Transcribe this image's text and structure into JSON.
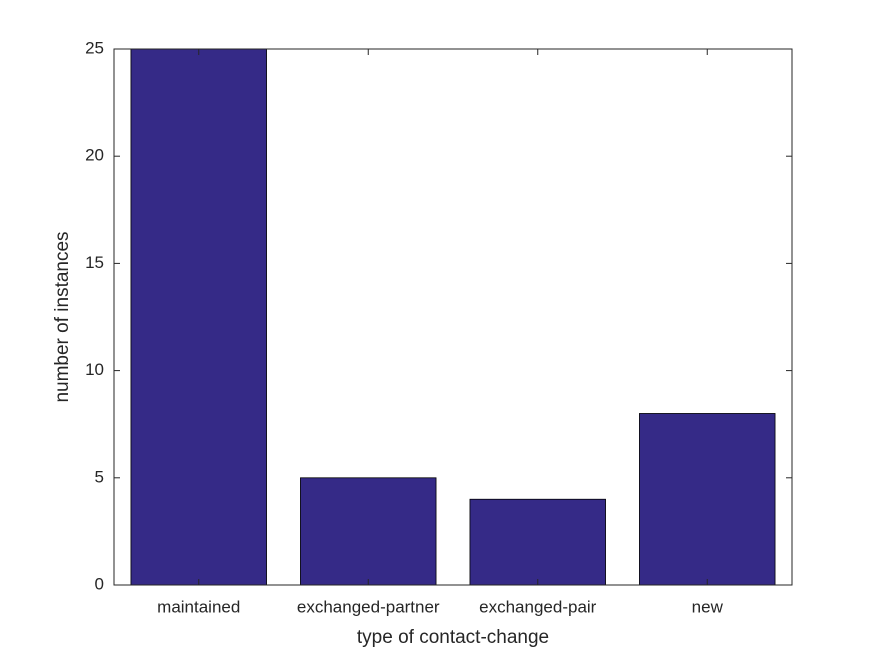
{
  "chart_data": {
    "type": "bar",
    "xlabel": "type of contact-change",
    "ylabel": "number of instances",
    "categories": [
      "maintained",
      "exchanged-partner",
      "exchanged-pair",
      "new"
    ],
    "values": [
      25,
      5,
      4,
      8
    ],
    "color": "#352a87",
    "ylim": [
      0,
      25
    ],
    "yticks": [
      0,
      5,
      10,
      15,
      20,
      25
    ],
    "grid": false
  }
}
